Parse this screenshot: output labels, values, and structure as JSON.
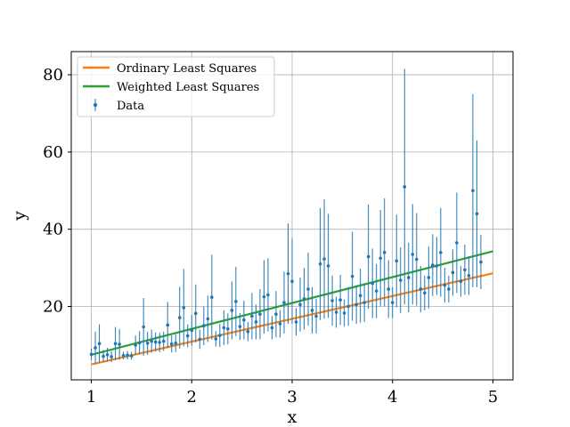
{
  "chart_data": {
    "type": "scatter",
    "xlabel": "x",
    "ylabel": "y",
    "xlim": [
      0.8,
      5.2
    ],
    "ylim": [
      1,
      86
    ],
    "xticks": [
      1,
      2,
      3,
      4,
      5
    ],
    "yticks": [
      20,
      40,
      60,
      80
    ],
    "grid": true,
    "legend": {
      "location": "upper-left",
      "entries": [
        "Ordinary Least Squares",
        "Weighted Least Squares",
        "Data"
      ]
    },
    "colors": {
      "ols": "#ff7f0e",
      "wls": "#2ca02c",
      "data": "#1f77b4",
      "grid": "#b0b0b0"
    },
    "series": [
      {
        "name": "Ordinary Least Squares",
        "type": "line",
        "x": [
          1,
          5
        ],
        "y": [
          5.0,
          28.6
        ]
      },
      {
        "name": "Weighted Least Squares",
        "type": "line",
        "x": [
          1,
          5
        ],
        "y": [
          7.5,
          34.3
        ]
      },
      {
        "name": "Data",
        "type": "errorbar",
        "points": [
          [
            1.0,
            7.6,
            1.5
          ],
          [
            1.04,
            9.3,
            4.2
          ],
          [
            1.08,
            10.4,
            5.0
          ],
          [
            1.12,
            7.1,
            1.6
          ],
          [
            1.16,
            7.5,
            1.8
          ],
          [
            1.2,
            7.0,
            1.4
          ],
          [
            1.24,
            10.4,
            4.3
          ],
          [
            1.28,
            10.2,
            4.0
          ],
          [
            1.32,
            7.3,
            1.0
          ],
          [
            1.36,
            7.4,
            1.1
          ],
          [
            1.4,
            7.2,
            1.0
          ],
          [
            1.44,
            10.0,
            2.5
          ],
          [
            1.48,
            10.6,
            3.0
          ],
          [
            1.52,
            14.7,
            7.5
          ],
          [
            1.56,
            10.5,
            3.0
          ],
          [
            1.6,
            11.0,
            3.0
          ],
          [
            1.64,
            10.8,
            2.5
          ],
          [
            1.68,
            10.7,
            2.5
          ],
          [
            1.72,
            11.0,
            2.5
          ],
          [
            1.76,
            15.2,
            6.0
          ],
          [
            1.8,
            10.3,
            2.2
          ],
          [
            1.84,
            10.5,
            2.3
          ],
          [
            1.88,
            17.1,
            8.0
          ],
          [
            1.92,
            19.7,
            10.0
          ],
          [
            1.96,
            12.4,
            3.0
          ],
          [
            2.0,
            13.8,
            4.0
          ],
          [
            2.04,
            18.2,
            7.5
          ],
          [
            2.08,
            11.5,
            2.5
          ],
          [
            2.12,
            15.0,
            5.0
          ],
          [
            2.16,
            16.8,
            6.0
          ],
          [
            2.2,
            22.4,
            11.0
          ],
          [
            2.24,
            11.6,
            2.0
          ],
          [
            2.28,
            12.5,
            3.0
          ],
          [
            2.32,
            14.5,
            4.5
          ],
          [
            2.36,
            14.2,
            4.0
          ],
          [
            2.4,
            19.0,
            7.5
          ],
          [
            2.44,
            21.3,
            9.0
          ],
          [
            2.48,
            14.8,
            3.5
          ],
          [
            2.52,
            16.5,
            5.0
          ],
          [
            2.56,
            13.5,
            2.5
          ],
          [
            2.6,
            17.5,
            6.0
          ],
          [
            2.64,
            16.0,
            4.5
          ],
          [
            2.68,
            18.0,
            6.5
          ],
          [
            2.72,
            22.5,
            9.5
          ],
          [
            2.76,
            23.0,
            9.5
          ],
          [
            2.8,
            14.5,
            3.0
          ],
          [
            2.84,
            18.0,
            6.0
          ],
          [
            2.88,
            15.5,
            3.5
          ],
          [
            2.92,
            21.0,
            8.0
          ],
          [
            2.96,
            28.5,
            13.0
          ],
          [
            3.0,
            26.5,
            11.0
          ],
          [
            3.04,
            16.0,
            3.5
          ],
          [
            3.08,
            20.5,
            7.0
          ],
          [
            3.12,
            22.0,
            8.0
          ],
          [
            3.16,
            24.5,
            9.5
          ],
          [
            3.2,
            19.0,
            6.0
          ],
          [
            3.24,
            17.5,
            4.5
          ],
          [
            3.28,
            31.0,
            14.5
          ],
          [
            3.32,
            32.3,
            15.5
          ],
          [
            3.36,
            30.5,
            13.5
          ],
          [
            3.4,
            21.5,
            6.5
          ],
          [
            3.44,
            18.5,
            4.0
          ],
          [
            3.48,
            21.7,
            6.5
          ],
          [
            3.52,
            18.3,
            3.5
          ],
          [
            3.56,
            20.0,
            5.0
          ],
          [
            3.6,
            27.8,
            11.5
          ],
          [
            3.64,
            20.5,
            5.0
          ],
          [
            3.68,
            22.8,
            7.0
          ],
          [
            3.72,
            21.0,
            5.0
          ],
          [
            3.76,
            32.9,
            13.5
          ],
          [
            3.8,
            26.0,
            9.0
          ],
          [
            3.84,
            24.0,
            7.0
          ],
          [
            3.88,
            32.5,
            12.5
          ],
          [
            3.92,
            34.0,
            14.0
          ],
          [
            3.96,
            24.5,
            7.5
          ],
          [
            4.0,
            21.0,
            4.0
          ],
          [
            4.04,
            31.8,
            12.0
          ],
          [
            4.08,
            26.8,
            8.5
          ],
          [
            4.12,
            51.0,
            30.5
          ],
          [
            4.16,
            27.5,
            9.0
          ],
          [
            4.2,
            33.5,
            13.0
          ],
          [
            4.24,
            32.2,
            12.0
          ],
          [
            4.28,
            24.5,
            6.0
          ],
          [
            4.32,
            23.5,
            4.5
          ],
          [
            4.36,
            27.5,
            8.0
          ],
          [
            4.4,
            30.7,
            8.0
          ],
          [
            4.44,
            30.5,
            7.5
          ],
          [
            4.48,
            34.0,
            11.5
          ],
          [
            4.52,
            25.5,
            4.5
          ],
          [
            4.56,
            24.5,
            3.5
          ],
          [
            4.6,
            28.8,
            6.0
          ],
          [
            4.64,
            36.5,
            13.0
          ],
          [
            4.68,
            26.5,
            4.0
          ],
          [
            4.72,
            29.5,
            6.5
          ],
          [
            4.76,
            28.0,
            5.0
          ],
          [
            4.8,
            50.0,
            25.0
          ],
          [
            4.84,
            44.0,
            19.0
          ],
          [
            4.88,
            31.5,
            7.0
          ]
        ]
      }
    ]
  }
}
